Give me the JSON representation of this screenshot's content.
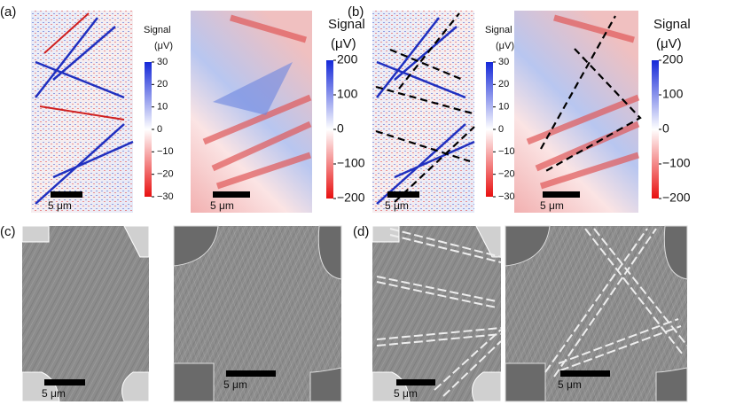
{
  "panels": [
    {
      "label": "(a)"
    },
    {
      "label": "(b)"
    },
    {
      "label": "(c)"
    },
    {
      "label": "(d)"
    }
  ],
  "colorbars": [
    {
      "title": "Signal",
      "unit": "(μV)",
      "ticks": [
        {
          "value": 30,
          "label": "30"
        },
        {
          "value": 20,
          "label": "20"
        },
        {
          "value": 10,
          "label": "10"
        },
        {
          "value": 0,
          "label": "0"
        },
        {
          "value": -10,
          "label": "−10"
        },
        {
          "value": -20,
          "label": "−20"
        },
        {
          "value": -30,
          "label": "−30"
        }
      ]
    },
    {
      "title": "Signal",
      "unit": "(μV)",
      "ticks": [
        {
          "value": 200,
          "label": "200"
        },
        {
          "value": 100,
          "label": "100"
        },
        {
          "value": 0,
          "label": "0"
        },
        {
          "value": -100,
          "label": "−100"
        },
        {
          "value": -200,
          "label": "−200"
        }
      ]
    }
  ],
  "scale_bar": "5 μm"
}
